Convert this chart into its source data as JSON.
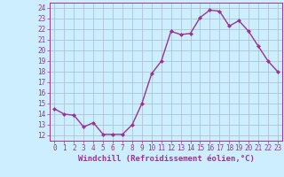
{
  "hours": [
    0,
    1,
    2,
    3,
    4,
    5,
    6,
    7,
    8,
    9,
    10,
    11,
    12,
    13,
    14,
    15,
    16,
    17,
    18,
    19,
    20,
    21,
    22,
    23
  ],
  "values": [
    14.5,
    14.0,
    13.9,
    12.8,
    13.2,
    12.1,
    12.1,
    12.1,
    13.0,
    15.0,
    17.8,
    19.0,
    21.8,
    21.5,
    21.6,
    23.1,
    23.8,
    23.7,
    22.3,
    22.8,
    21.8,
    20.4,
    19.0,
    18.0
  ],
  "line_color": "#993399",
  "marker": "D",
  "marker_size": 2.0,
  "bg_color": "#cceeff",
  "grid_color": "#aabbcc",
  "xlabel": "Windchill (Refroidissement éolien,°C)",
  "ylabel_ticks": [
    12,
    13,
    14,
    15,
    16,
    17,
    18,
    19,
    20,
    21,
    22,
    23,
    24
  ],
  "xlim": [
    -0.5,
    23.5
  ],
  "ylim": [
    11.5,
    24.5
  ],
  "xlabel_fontsize": 6.5,
  "tick_fontsize": 5.5,
  "axis_color": "#993399",
  "line_width": 1.0
}
